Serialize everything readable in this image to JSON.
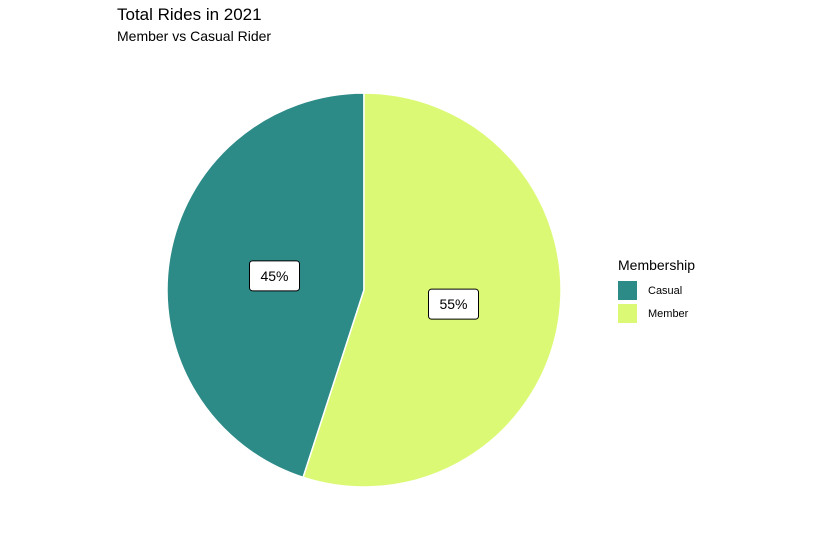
{
  "chart_data": {
    "type": "pie",
    "title": "Total Rides in 2021",
    "subtitle": "Member vs Casual Rider",
    "legend_title": "Membership",
    "legend_placement": "right",
    "categories": [
      "Casual",
      "Member"
    ],
    "values": [
      45,
      55
    ],
    "labels": [
      "45%",
      "55%"
    ],
    "colors": [
      "#2C8A87",
      "#DCF976"
    ],
    "slice_border_color": "#ffffff",
    "grid": false
  }
}
